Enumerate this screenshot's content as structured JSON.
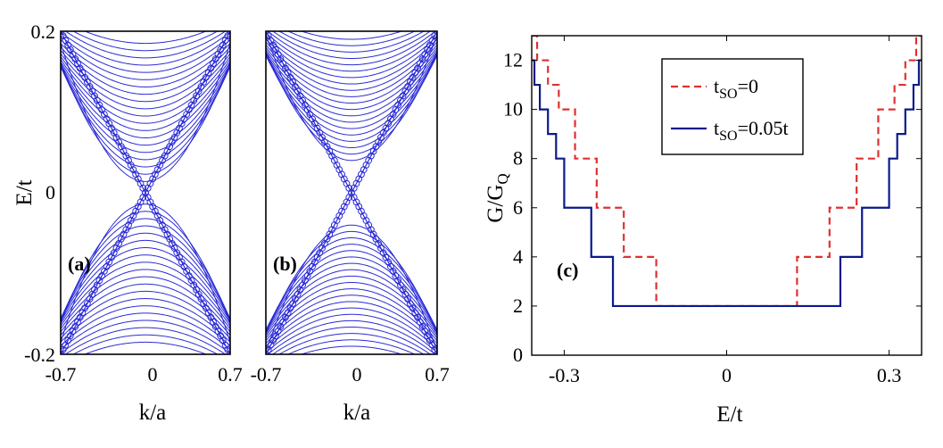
{
  "chart_data": [
    {
      "type": "line",
      "panel_label": "(a)",
      "title": "",
      "xlabel": "k/a",
      "ylabel": "E/t",
      "xlim": [
        -0.7,
        0.7
      ],
      "ylim": [
        -0.2,
        0.2
      ],
      "xticks": [
        "-0.7",
        "0",
        "0.7"
      ],
      "yticks": [
        "-0.2",
        "0",
        "0.2"
      ],
      "band_color": "#2b2bd6",
      "edge_state_marker": "circle",
      "edge_states": {
        "description": "linear crossing bands E = ±0.2857·k through the Dirac point (0,0)",
        "slope": 0.2857,
        "marker_k_step": 0.02
      },
      "bulk_bands": {
        "count": 20,
        "gap_min": 0.014,
        "gap_max": 0.185,
        "curvature_min": 0.35,
        "curvature_max": 0.06
      }
    },
    {
      "type": "line",
      "panel_label": "(b)",
      "title": "",
      "xlabel": "k/a",
      "ylabel": "",
      "xlim": [
        -0.7,
        0.7
      ],
      "ylim": [
        -0.2,
        0.2
      ],
      "xticks": [
        "-0.7",
        "0",
        "0.7"
      ],
      "yticks": [],
      "band_color": "#2b2bd6",
      "edge_state_marker": "circle",
      "edge_states": {
        "description": "linear crossing bands E = ±0.2857·k through the Dirac point (0,0)",
        "slope": 0.2857,
        "marker_k_step": 0.02
      },
      "bulk_bands": {
        "count": 20,
        "gap_min": 0.04,
        "gap_max": 0.19,
        "curvature_min": 0.32,
        "curvature_max": 0.06
      }
    },
    {
      "type": "line",
      "panel_label": "(c)",
      "title": "",
      "xlabel": "E/t",
      "ylabel": "G/G",
      "ylabel_subscript": "Q",
      "xlim": [
        -0.36,
        0.36
      ],
      "ylim": [
        0,
        13
      ],
      "xticks": [
        -0.3,
        0,
        0.3
      ],
      "xtick_labels": [
        "-0.3",
        "0",
        "0.3"
      ],
      "yticks": [
        0,
        2,
        4,
        6,
        8,
        10,
        12
      ],
      "ytick_labels": [
        "0",
        "2",
        "4",
        "6",
        "8",
        "10",
        "12"
      ],
      "legend": {
        "position": "top-center"
      },
      "series": [
        {
          "name": "t_SO=0",
          "legend_main": "t",
          "legend_sub": "SO",
          "legend_rest": "=0",
          "color": "#e03030",
          "style": "dashed",
          "steps": [
            [
              0.06,
              2
            ],
            [
              0.13,
              4
            ],
            [
              0.19,
              6
            ],
            [
              0.24,
              8
            ],
            [
              0.28,
              10
            ],
            [
              0.31,
              11
            ],
            [
              0.33,
              12
            ],
            [
              0.35,
              13
            ]
          ]
        },
        {
          "name": "t_SO=0.05t",
          "legend_main": "t",
          "legend_sub": "SO",
          "legend_rest": "=0.05t",
          "color": "#0a1a8a",
          "style": "solid",
          "steps": [
            [
              0.18,
              2
            ],
            [
              0.21,
              4
            ],
            [
              0.25,
              6
            ],
            [
              0.3,
              8
            ],
            [
              0.315,
              9
            ],
            [
              0.33,
              10
            ],
            [
              0.345,
              11
            ],
            [
              0.355,
              12
            ]
          ]
        }
      ]
    }
  ]
}
